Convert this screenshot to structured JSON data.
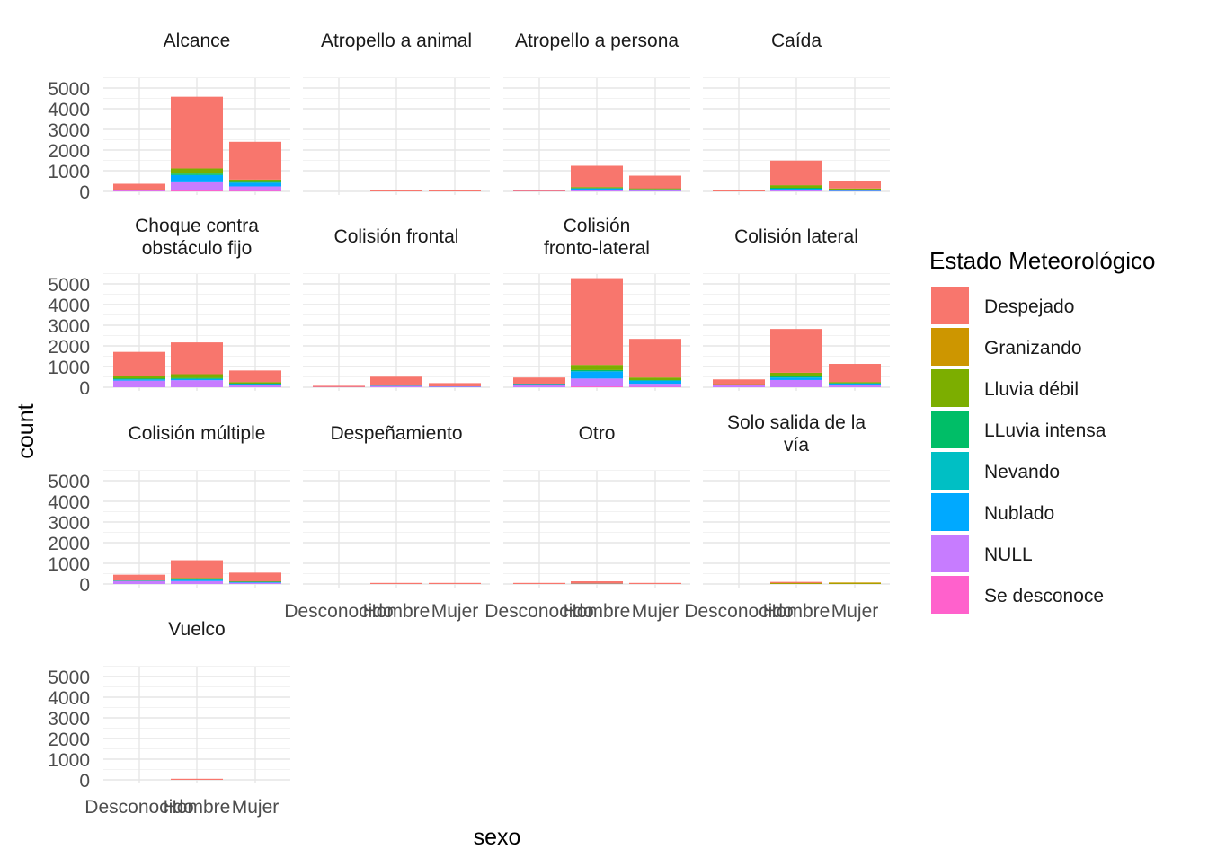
{
  "chart_data": {
    "type": "bar",
    "stacked": true,
    "faceted": true,
    "xlabel": "sexo",
    "ylabel": "count",
    "ylim": [
      0,
      5000
    ],
    "yticks": [
      0,
      1000,
      2000,
      3000,
      4000,
      5000
    ],
    "categories": [
      "Desconocido",
      "Hombre",
      "Mujer"
    ],
    "grid": true,
    "legend": {
      "title": "Estado Meteorológico",
      "position": "right",
      "items": [
        {
          "name": "Despejado",
          "color": "#F8766D"
        },
        {
          "name": "Granizando",
          "color": "#CD9600"
        },
        {
          "name": "Lluvia débil",
          "color": "#7CAE00"
        },
        {
          "name": "LLuvia intensa",
          "color": "#00BE67"
        },
        {
          "name": "Nevando",
          "color": "#00BFC4"
        },
        {
          "name": "Nublado",
          "color": "#00A9FF"
        },
        {
          "name": "NULL",
          "color": "#C77CFF"
        },
        {
          "name": "Se desconoce",
          "color": "#FF61CC"
        }
      ]
    },
    "stack_order": [
      "Se desconoce",
      "NULL",
      "Nublado",
      "Nevando",
      "LLuvia intensa",
      "Lluvia débil",
      "Granizando",
      "Despejado"
    ],
    "facets": [
      {
        "title": [
          "Alcance"
        ],
        "bars": [
          {
            "Despejado": 280,
            "Lluvia débil": 10,
            "NULL": 60,
            "Se desconoce": 20
          },
          {
            "Despejado": 3470,
            "Lluvia débil": 250,
            "LLuvia intensa": 70,
            "Nublado": 350,
            "NULL": 400,
            "Se desconoce": 40
          },
          {
            "Despejado": 1830,
            "Lluvia débil": 110,
            "LLuvia intensa": 40,
            "Nublado": 180,
            "NULL": 210,
            "Se desconoce": 30
          }
        ]
      },
      {
        "title": [
          "Atropello a animal"
        ],
        "bars": [
          {},
          {
            "Despejado": 30
          },
          {
            "Despejado": 15
          }
        ]
      },
      {
        "title": [
          "Atropello a persona"
        ],
        "bars": [
          {
            "Despejado": 60,
            "NULL": 10
          },
          {
            "Despejado": 1030,
            "Lluvia débil": 60,
            "Nublado": 80,
            "NULL": 70
          },
          {
            "Despejado": 620,
            "Lluvia débil": 40,
            "Nublado": 60,
            "NULL": 40
          }
        ]
      },
      {
        "title": [
          "Caída"
        ],
        "bars": [
          {
            "Despejado": 30
          },
          {
            "Despejado": 1190,
            "Lluvia débil": 130,
            "LLuvia intensa": 40,
            "Nublado": 70,
            "NULL": 60
          },
          {
            "Despejado": 340,
            "Lluvia débil": 70,
            "LLuvia intensa": 30,
            "Nublado": 20,
            "NULL": 20
          }
        ]
      },
      {
        "title": [
          "Choque contra",
          "obstáculo fijo"
        ],
        "bars": [
          {
            "Despejado": 1170,
            "Lluvia débil": 120,
            "LLuvia intensa": 40,
            "Nublado": 60,
            "NULL": 320
          },
          {
            "Despejado": 1540,
            "Lluvia débil": 180,
            "LLuvia intensa": 50,
            "Nublado": 60,
            "NULL": 340
          },
          {
            "Despejado": 560,
            "Lluvia débil": 70,
            "LLuvia intensa": 20,
            "Nublado": 30,
            "NULL": 130
          }
        ]
      },
      {
        "title": [
          "Colisión frontal"
        ],
        "bars": [
          {
            "Despejado": 60,
            "NULL": 10
          },
          {
            "Despejado": 440,
            "Nublado": 20,
            "NULL": 50
          },
          {
            "Despejado": 160,
            "Nublado": 10,
            "NULL": 30
          }
        ]
      },
      {
        "title": [
          "Colisión",
          "fronto-lateral"
        ],
        "bars": [
          {
            "Despejado": 300,
            "Lluvia débil": 10,
            "Nublado": 40,
            "NULL": 120
          },
          {
            "Despejado": 4200,
            "Lluvia débil": 250,
            "LLuvia intensa": 60,
            "Nublado": 350,
            "NULL": 380,
            "Se desconoce": 40
          },
          {
            "Despejado": 1870,
            "Lluvia débil": 120,
            "LLuvia intensa": 30,
            "Nublado": 150,
            "NULL": 150,
            "Se desconoce": 20
          }
        ]
      },
      {
        "title": [
          "Colisión lateral"
        ],
        "bars": [
          {
            "Despejado": 240,
            "Lluvia débil": 10,
            "Nublado": 30,
            "NULL": 100
          },
          {
            "Despejado": 2120,
            "Lluvia débil": 180,
            "LLuvia intensa": 50,
            "Nublado": 120,
            "NULL": 350
          },
          {
            "Despejado": 880,
            "Lluvia débil": 50,
            "LLuvia intensa": 20,
            "Nublado": 60,
            "NULL": 120
          }
        ]
      },
      {
        "title": [
          "Colisión múltiple"
        ],
        "bars": [
          {
            "Despejado": 280,
            "Lluvia débil": 10,
            "Nublado": 20,
            "NULL": 140
          },
          {
            "Despejado": 860,
            "Lluvia débil": 70,
            "LLuvia intensa": 20,
            "Nublado": 60,
            "NULL": 140
          },
          {
            "Despejado": 420,
            "Lluvia débil": 30,
            "Nublado": 40,
            "NULL": 60
          }
        ]
      },
      {
        "title": [
          "Despeñamiento"
        ],
        "bars": [
          {},
          {
            "Despejado": 10
          },
          {
            "Despejado": 5
          }
        ]
      },
      {
        "title": [
          "Otro"
        ],
        "bars": [
          {
            "Despejado": 30
          },
          {
            "Despejado": 90,
            "Granizando": 10,
            "Lluvia débil": 10,
            "NULL": 20
          },
          {
            "Despejado": 30
          }
        ]
      },
      {
        "title": [
          "Solo salida de la",
          "vía"
        ],
        "bars": [
          {},
          {
            "Despejado": 20,
            "Granizando": 30,
            "Lluvia débil": 20
          },
          {
            "Granizando": 20,
            "Lluvia débil": 20
          }
        ]
      },
      {
        "title": [
          "Vuelco"
        ],
        "bars": [
          {},
          {
            "Despejado": 35
          },
          {}
        ]
      }
    ]
  }
}
